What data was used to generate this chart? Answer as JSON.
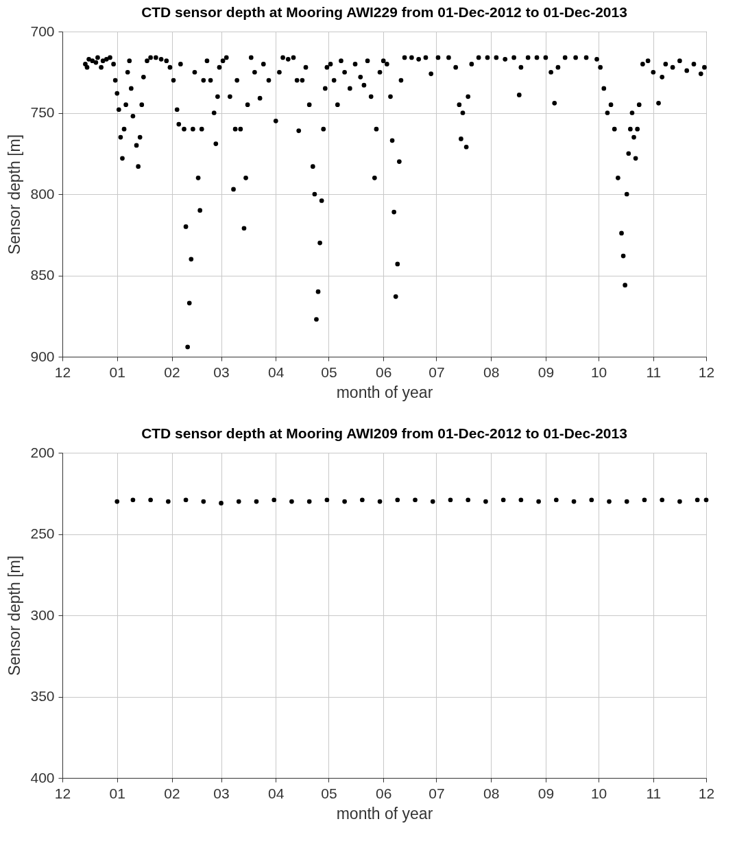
{
  "chart_data": [
    {
      "type": "scatter",
      "title": "CTD sensor depth at Mooring AWI229 from 01-Dec-2012 to 01-Dec-2013",
      "xlabel": "month of year",
      "ylabel": "Sensor depth [m]",
      "xlim": [
        "2012-12-01",
        "2013-12-01"
      ],
      "xticks": [
        {
          "value": "2012-12-01",
          "label": "12"
        },
        {
          "value": "2013-01-01",
          "label": "01"
        },
        {
          "value": "2013-02-01",
          "label": "02"
        },
        {
          "value": "2013-03-01",
          "label": "03"
        },
        {
          "value": "2013-04-01",
          "label": "04"
        },
        {
          "value": "2013-05-01",
          "label": "05"
        },
        {
          "value": "2013-06-01",
          "label": "06"
        },
        {
          "value": "2013-07-01",
          "label": "07"
        },
        {
          "value": "2013-08-01",
          "label": "08"
        },
        {
          "value": "2013-09-01",
          "label": "09"
        },
        {
          "value": "2013-10-01",
          "label": "10"
        },
        {
          "value": "2013-11-01",
          "label": "11"
        },
        {
          "value": "2013-12-01",
          "label": "12"
        }
      ],
      "ylim": [
        900,
        700
      ],
      "yticks": [
        700,
        750,
        800,
        850,
        900
      ],
      "grid": true,
      "marker": "circle",
      "series": [
        {
          "color": "#000000",
          "x": [
            "2012-12-14",
            "2012-12-15",
            "2012-12-16",
            "2012-12-18",
            "2012-12-20",
            "2012-12-21",
            "2012-12-23",
            "2012-12-24",
            "2012-12-26",
            "2012-12-28",
            "2012-12-30",
            "2012-12-31",
            "2013-01-01",
            "2013-01-02",
            "2013-01-03",
            "2013-01-04",
            "2013-01-05",
            "2013-01-06",
            "2013-01-07",
            "2013-01-08",
            "2013-01-09",
            "2013-01-10",
            "2013-01-12",
            "2013-01-13",
            "2013-01-14",
            "2013-01-15",
            "2013-01-16",
            "2013-01-18",
            "2013-01-20",
            "2013-01-23",
            "2013-01-26",
            "2013-01-29",
            "2013-01-31",
            "2013-02-02",
            "2013-02-04",
            "2013-02-05",
            "2013-02-06",
            "2013-02-08",
            "2013-02-09",
            "2013-02-10",
            "2013-02-11",
            "2013-02-12",
            "2013-02-13",
            "2013-02-14",
            "2013-02-16",
            "2013-02-17",
            "2013-02-18",
            "2013-02-19",
            "2013-02-21",
            "2013-02-23",
            "2013-02-25",
            "2013-02-26",
            "2013-02-27",
            "2013-02-28",
            "2013-03-02",
            "2013-03-04",
            "2013-03-06",
            "2013-03-08",
            "2013-03-09",
            "2013-03-10",
            "2013-03-12",
            "2013-03-14",
            "2013-03-15",
            "2013-03-16",
            "2013-03-18",
            "2013-03-20",
            "2013-03-23",
            "2013-03-25",
            "2013-03-28",
            "2013-04-01",
            "2013-04-03",
            "2013-04-05",
            "2013-04-08",
            "2013-04-11",
            "2013-04-13",
            "2013-04-14",
            "2013-04-16",
            "2013-04-18",
            "2013-04-20",
            "2013-04-22",
            "2013-04-23",
            "2013-04-24",
            "2013-04-25",
            "2013-04-26",
            "2013-04-27",
            "2013-04-28",
            "2013-04-29",
            "2013-04-30",
            "2013-05-02",
            "2013-05-04",
            "2013-05-06",
            "2013-05-08",
            "2013-05-10",
            "2013-05-13",
            "2013-05-16",
            "2013-05-19",
            "2013-05-21",
            "2013-05-23",
            "2013-05-25",
            "2013-05-27",
            "2013-05-28",
            "2013-05-30",
            "2013-06-01",
            "2013-06-03",
            "2013-06-05",
            "2013-06-06",
            "2013-06-07",
            "2013-06-08",
            "2013-06-09",
            "2013-06-10",
            "2013-06-11",
            "2013-06-13",
            "2013-06-17",
            "2013-06-21",
            "2013-06-25",
            "2013-06-28",
            "2013-07-02",
            "2013-07-08",
            "2013-07-12",
            "2013-07-14",
            "2013-07-15",
            "2013-07-16",
            "2013-07-18",
            "2013-07-19",
            "2013-07-21",
            "2013-07-25",
            "2013-07-30",
            "2013-08-04",
            "2013-08-09",
            "2013-08-14",
            "2013-08-17",
            "2013-08-18",
            "2013-08-22",
            "2013-08-27",
            "2013-09-01",
            "2013-09-04",
            "2013-09-06",
            "2013-09-08",
            "2013-09-12",
            "2013-09-18",
            "2013-09-24",
            "2013-09-30",
            "2013-10-02",
            "2013-10-04",
            "2013-10-06",
            "2013-10-08",
            "2013-10-10",
            "2013-10-12",
            "2013-10-14",
            "2013-10-15",
            "2013-10-16",
            "2013-10-17",
            "2013-10-18",
            "2013-10-19",
            "2013-10-20",
            "2013-10-21",
            "2013-10-22",
            "2013-10-23",
            "2013-10-24",
            "2013-10-26",
            "2013-10-29",
            "2013-11-01",
            "2013-11-04",
            "2013-11-06",
            "2013-11-08",
            "2013-11-12",
            "2013-11-16",
            "2013-11-20",
            "2013-11-24",
            "2013-11-28",
            "2013-11-30"
          ],
          "values": [
            720,
            722,
            717,
            718,
            719,
            716,
            722,
            718,
            717,
            716,
            720,
            730,
            738,
            748,
            765,
            778,
            760,
            745,
            725,
            718,
            735,
            752,
            770,
            783,
            765,
            745,
            728,
            718,
            716,
            716,
            717,
            718,
            722,
            730,
            748,
            757,
            720,
            760,
            820,
            894,
            867,
            840,
            760,
            725,
            790,
            810,
            760,
            730,
            718,
            730,
            750,
            769,
            740,
            722,
            718,
            716,
            740,
            797,
            760,
            730,
            760,
            821,
            790,
            745,
            716,
            725,
            741,
            720,
            730,
            755,
            725,
            716,
            717,
            716,
            730,
            761,
            730,
            722,
            745,
            783,
            800,
            877,
            860,
            830,
            804,
            760,
            735,
            722,
            720,
            730,
            745,
            718,
            725,
            735,
            720,
            728,
            733,
            718,
            740,
            790,
            760,
            725,
            718,
            720,
            740,
            767,
            811,
            863,
            843,
            780,
            730,
            716,
            716,
            717,
            716,
            726,
            716,
            716,
            722,
            745,
            766,
            750,
            771,
            740,
            720,
            716,
            716,
            716,
            717,
            716,
            739,
            722,
            716,
            716,
            716,
            725,
            744,
            722,
            716,
            716,
            716,
            717,
            722,
            735,
            750,
            745,
            760,
            790,
            824,
            838,
            856,
            800,
            775,
            760,
            750,
            765,
            778,
            760,
            745,
            720,
            718,
            725,
            744,
            728,
            720,
            722,
            718,
            724,
            720,
            726,
            722
          ]
        }
      ]
    },
    {
      "type": "scatter",
      "title": "CTD sensor depth at Mooring AWI209 from 01-Dec-2012 to 01-Dec-2013",
      "xlabel": "month of year",
      "ylabel": "Sensor depth [m]",
      "xlim": [
        "2012-12-01",
        "2013-12-01"
      ],
      "xticks": [
        {
          "value": "2012-12-01",
          "label": "12"
        },
        {
          "value": "2013-01-01",
          "label": "01"
        },
        {
          "value": "2013-02-01",
          "label": "02"
        },
        {
          "value": "2013-03-01",
          "label": "03"
        },
        {
          "value": "2013-04-01",
          "label": "04"
        },
        {
          "value": "2013-05-01",
          "label": "05"
        },
        {
          "value": "2013-06-01",
          "label": "06"
        },
        {
          "value": "2013-07-01",
          "label": "07"
        },
        {
          "value": "2013-08-01",
          "label": "08"
        },
        {
          "value": "2013-09-01",
          "label": "09"
        },
        {
          "value": "2013-10-01",
          "label": "10"
        },
        {
          "value": "2013-11-01",
          "label": "11"
        },
        {
          "value": "2013-12-01",
          "label": "12"
        }
      ],
      "ylim": [
        400,
        200
      ],
      "yticks": [
        200,
        250,
        300,
        350,
        400
      ],
      "grid": true,
      "marker": "circle",
      "series": [
        {
          "color": "#000000",
          "x": [
            "2013-01-01",
            "2013-01-10",
            "2013-01-20",
            "2013-01-30",
            "2013-02-09",
            "2013-02-19",
            "2013-03-01",
            "2013-03-11",
            "2013-03-21",
            "2013-03-31",
            "2013-04-10",
            "2013-04-20",
            "2013-04-30",
            "2013-05-10",
            "2013-05-20",
            "2013-05-30",
            "2013-06-09",
            "2013-06-19",
            "2013-06-29",
            "2013-07-09",
            "2013-07-19",
            "2013-07-29",
            "2013-08-08",
            "2013-08-18",
            "2013-08-28",
            "2013-09-07",
            "2013-09-17",
            "2013-09-27",
            "2013-10-07",
            "2013-10-17",
            "2013-10-27",
            "2013-11-06",
            "2013-11-16",
            "2013-11-26",
            "2013-12-01"
          ],
          "values": [
            230,
            229,
            229,
            230,
            229,
            230,
            231,
            230,
            230,
            229,
            230,
            230,
            229,
            230,
            229,
            230,
            229,
            229,
            230,
            229,
            229,
            230,
            229,
            229,
            230,
            229,
            230,
            229,
            230,
            230,
            229,
            229,
            230,
            229,
            229
          ]
        }
      ]
    }
  ]
}
